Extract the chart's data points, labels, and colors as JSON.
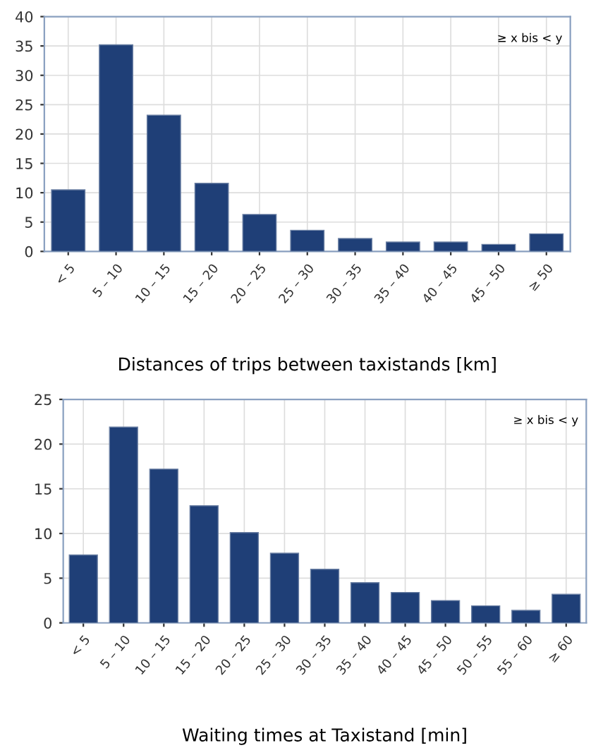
{
  "chart_data": [
    {
      "type": "bar",
      "xlabel": "Distances of trips between taxistands [km]",
      "categories": [
        "< 5",
        "5 – 10",
        "10 – 15",
        "15 – 20",
        "20 – 25",
        "25 – 30",
        "30 – 35",
        "35 – 40",
        "40 – 45",
        "45 – 50",
        "≥ 50"
      ],
      "values": [
        10.5,
        35.2,
        23.2,
        11.6,
        6.3,
        3.6,
        2.2,
        1.6,
        1.6,
        1.2,
        3.0
      ],
      "color": "#1f3f77",
      "ylim": [
        0,
        40
      ],
      "yticks": [
        0,
        5,
        10,
        15,
        20,
        25,
        30,
        35,
        40
      ],
      "grid": true,
      "annotations": [
        "≥ x bis < y"
      ]
    },
    {
      "type": "bar",
      "xlabel": "Waiting times at Taxistand [min]",
      "categories": [
        "< 5",
        "5 – 10",
        "10 – 15",
        "15 – 20",
        "20 – 25",
        "25 – 30",
        "30 – 35",
        "35 – 40",
        "40 – 45",
        "45 – 50",
        "50 – 55",
        "55 – 60",
        "≥ 60"
      ],
      "values": [
        7.6,
        21.9,
        17.2,
        13.1,
        10.1,
        7.8,
        6.0,
        4.5,
        3.4,
        2.5,
        1.9,
        1.4,
        3.2
      ],
      "color": "#1f3f77",
      "ylim": [
        0,
        25
      ],
      "yticks": [
        0,
        5,
        10,
        15,
        20,
        25
      ],
      "grid": true,
      "annotations": [
        "≥ x bis < y"
      ]
    }
  ]
}
